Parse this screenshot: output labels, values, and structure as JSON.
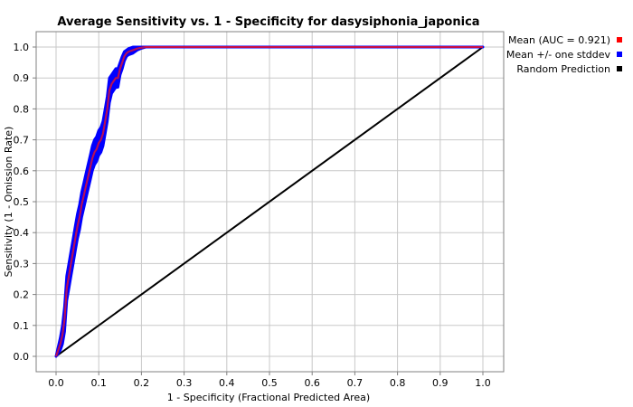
{
  "chart_data": {
    "type": "line",
    "title": "Average Sensitivity vs. 1 - Specificity for dasysiphonia_japonica",
    "xlabel": "1 - Specificity (Fractional Predicted Area)",
    "ylabel": "Sensitivity (1 - Omission Rate)",
    "xlim": [
      0.0,
      1.0
    ],
    "ylim": [
      0.0,
      1.0
    ],
    "x_ticks": [
      "0.0",
      "0.1",
      "0.2",
      "0.3",
      "0.4",
      "0.5",
      "0.6",
      "0.7",
      "0.8",
      "0.9",
      "1.0"
    ],
    "y_ticks": [
      "0.0",
      "0.1",
      "0.2",
      "0.3",
      "0.4",
      "0.5",
      "0.6",
      "0.7",
      "0.8",
      "0.9",
      "1.0"
    ],
    "grid": true,
    "legend_position": "right",
    "series": [
      {
        "name": "Mean (AUC = 0.921)",
        "color": "#ff0000",
        "x": [
          0.0,
          0.01,
          0.015,
          0.02,
          0.025,
          0.03,
          0.035,
          0.04,
          0.045,
          0.05,
          0.055,
          0.06,
          0.065,
          0.07,
          0.075,
          0.08,
          0.085,
          0.09,
          0.095,
          0.1,
          0.105,
          0.11,
          0.115,
          0.12,
          0.125,
          0.13,
          0.135,
          0.14,
          0.145,
          0.15,
          0.155,
          0.16,
          0.165,
          0.17,
          0.18,
          0.19,
          0.2,
          0.21,
          0.25,
          0.3,
          0.4,
          0.5,
          0.6,
          0.7,
          0.8,
          0.9,
          1.0
        ],
        "y": [
          0.0,
          0.04,
          0.07,
          0.12,
          0.22,
          0.26,
          0.3,
          0.34,
          0.38,
          0.42,
          0.45,
          0.49,
          0.52,
          0.55,
          0.58,
          0.61,
          0.64,
          0.66,
          0.67,
          0.69,
          0.7,
          0.72,
          0.76,
          0.8,
          0.86,
          0.88,
          0.89,
          0.9,
          0.9,
          0.93,
          0.95,
          0.97,
          0.98,
          0.985,
          0.99,
          0.995,
          0.998,
          1.0,
          1.0,
          1.0,
          1.0,
          1.0,
          1.0,
          1.0,
          1.0,
          1.0,
          1.0
        ]
      },
      {
        "name": "Mean +/- one stddev",
        "color": "#0000ff",
        "upper": [
          0.0,
          0.06,
          0.1,
          0.16,
          0.26,
          0.3,
          0.34,
          0.38,
          0.42,
          0.46,
          0.49,
          0.53,
          0.56,
          0.59,
          0.62,
          0.65,
          0.68,
          0.7,
          0.71,
          0.73,
          0.74,
          0.76,
          0.8,
          0.84,
          0.9,
          0.91,
          0.92,
          0.93,
          0.93,
          0.95,
          0.97,
          0.985,
          0.99,
          0.995,
          1.0,
          1.0,
          1.0,
          1.0,
          1.0,
          1.0,
          1.0,
          1.0,
          1.0,
          1.0,
          1.0,
          1.0,
          1.0
        ],
        "lower": [
          0.0,
          0.02,
          0.04,
          0.08,
          0.18,
          0.22,
          0.26,
          0.3,
          0.34,
          0.38,
          0.41,
          0.45,
          0.48,
          0.51,
          0.54,
          0.57,
          0.6,
          0.62,
          0.63,
          0.65,
          0.66,
          0.68,
          0.72,
          0.76,
          0.82,
          0.85,
          0.86,
          0.87,
          0.87,
          0.91,
          0.93,
          0.955,
          0.97,
          0.975,
          0.98,
          0.99,
          0.996,
          1.0,
          1.0,
          1.0,
          1.0,
          1.0,
          1.0,
          1.0,
          1.0,
          1.0,
          1.0
        ]
      },
      {
        "name": "Random Prediction",
        "color": "#000000",
        "x": [
          0.0,
          1.0
        ],
        "y": [
          0.0,
          1.0
        ]
      }
    ]
  }
}
